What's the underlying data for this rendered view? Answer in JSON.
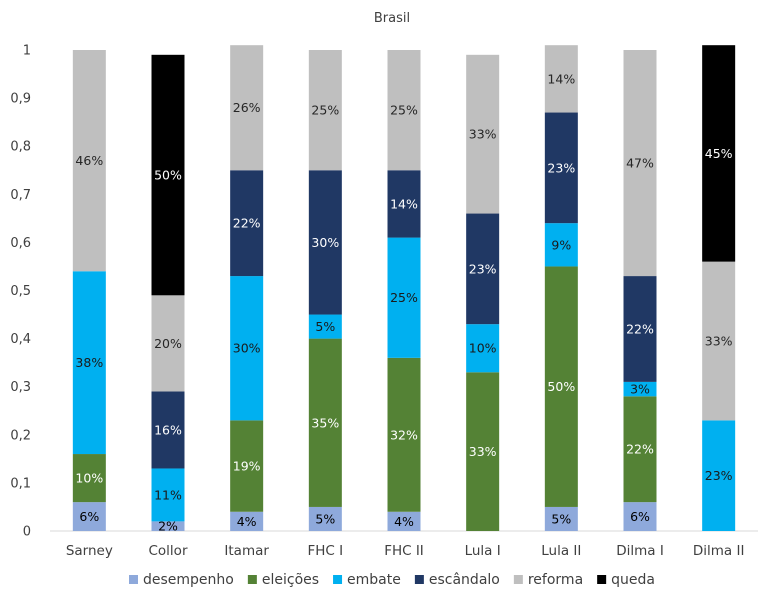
{
  "chart_data": {
    "type": "bar",
    "stacked": true,
    "title": "Brasil",
    "xlabel": "",
    "ylabel": "",
    "ylim": [
      0,
      1
    ],
    "yticks": [
      "0",
      "0,1",
      "0,2",
      "0,3",
      "0,4",
      "0,5",
      "0,6",
      "0,7",
      "0,8",
      "0,9",
      "1"
    ],
    "grid": false,
    "legend_position": "bottom",
    "categories": [
      "Sarney",
      "Collor",
      "Itamar",
      "FHC I",
      "FHC II",
      "Lula I",
      "Lula II",
      "Dilma I",
      "Dilma II"
    ],
    "series": [
      {
        "name": "desempenho",
        "color": "#8ea9db",
        "label_color": "#000000",
        "values": [
          0.06,
          0.02,
          0.04,
          0.05,
          0.04,
          0,
          0.05,
          0.06,
          0
        ],
        "labels": [
          "6%",
          "2%",
          "4%",
          "5%",
          "4%",
          "",
          "5%",
          "6%",
          ""
        ]
      },
      {
        "name": "eleições",
        "color": "#548235",
        "label_color": "#ffffff",
        "values": [
          0.1,
          0,
          0.19,
          0.35,
          0.32,
          0.33,
          0.5,
          0.22,
          0
        ],
        "labels": [
          "10%",
          "",
          "19%",
          "35%",
          "32%",
          "33%",
          "50%",
          "22%",
          ""
        ]
      },
      {
        "name": "embate",
        "color": "#00b0f0",
        "label_color": "#1a1a1a",
        "values": [
          0.38,
          0.11,
          0.3,
          0.05,
          0.25,
          0.1,
          0.09,
          0.03,
          0.23
        ],
        "labels": [
          "38%",
          "11%",
          "30%",
          "5%",
          "25%",
          "10%",
          "9%",
          "3%",
          "23%"
        ]
      },
      {
        "name": "escândalo",
        "color": "#203864",
        "label_color": "#ffffff",
        "values": [
          0,
          0.16,
          0.22,
          0.3,
          0.14,
          0.23,
          0.23,
          0.22,
          0
        ],
        "labels": [
          "",
          "16%",
          "22%",
          "30%",
          "14%",
          "23%",
          "23%",
          "22%",
          ""
        ]
      },
      {
        "name": "reforma",
        "color": "#bfbfbf",
        "label_color": "#262626",
        "values": [
          0.46,
          0.2,
          0.26,
          0.25,
          0.25,
          0.33,
          0.14,
          0.47,
          0.33
        ],
        "labels": [
          "46%",
          "20%",
          "26%",
          "25%",
          "25%",
          "33%",
          "14%",
          "47%",
          "33%"
        ]
      },
      {
        "name": "queda",
        "color": "#000000",
        "label_color": "#ffffff",
        "values": [
          0,
          0.5,
          0,
          0,
          0,
          0,
          0,
          0,
          0.45
        ],
        "labels": [
          "",
          "50%",
          "",
          "",
          "",
          "",
          "",
          "",
          "45%"
        ]
      }
    ]
  }
}
